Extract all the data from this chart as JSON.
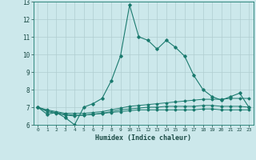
{
  "xlabel": "Humidex (Indice chaleur)",
  "xlim": [
    -0.5,
    23.5
  ],
  "ylim": [
    6,
    13
  ],
  "yticks": [
    6,
    7,
    8,
    9,
    10,
    11,
    12,
    13
  ],
  "xticks": [
    0,
    1,
    2,
    3,
    4,
    5,
    6,
    7,
    8,
    9,
    10,
    11,
    12,
    13,
    14,
    15,
    16,
    17,
    18,
    19,
    20,
    21,
    22,
    23
  ],
  "bg_color": "#cce8eb",
  "grid_color": "#b0cdd0",
  "line_color": "#1a7a6e",
  "line1_x": [
    0,
    1,
    2,
    3,
    4,
    5,
    6,
    7,
    8,
    9,
    10,
    11,
    12,
    13,
    14,
    15,
    16,
    17,
    18,
    19,
    20,
    21,
    22,
    23
  ],
  "line1_y": [
    7.0,
    6.6,
    6.7,
    6.4,
    6.0,
    7.0,
    7.2,
    7.5,
    8.5,
    9.9,
    12.8,
    11.0,
    10.8,
    10.3,
    10.8,
    10.4,
    9.9,
    8.8,
    8.0,
    7.6,
    7.4,
    7.6,
    7.8,
    7.0
  ],
  "line2_x": [
    0,
    1,
    2,
    3,
    4,
    5,
    6,
    7,
    8,
    9,
    10,
    11,
    12,
    13,
    14,
    15,
    16,
    17,
    18,
    19,
    20,
    21,
    22,
    23
  ],
  "line2_y": [
    7.0,
    6.85,
    6.75,
    6.65,
    6.65,
    6.65,
    6.7,
    6.75,
    6.85,
    6.95,
    7.05,
    7.1,
    7.15,
    7.2,
    7.25,
    7.3,
    7.35,
    7.4,
    7.45,
    7.45,
    7.45,
    7.5,
    7.5,
    7.5
  ],
  "line3_x": [
    0,
    1,
    2,
    3,
    4,
    5,
    6,
    7,
    8,
    9,
    10,
    11,
    12,
    13,
    14,
    15,
    16,
    17,
    18,
    19,
    20,
    21,
    22,
    23
  ],
  "line3_y": [
    7.0,
    6.8,
    6.7,
    6.6,
    6.55,
    6.55,
    6.6,
    6.65,
    6.75,
    6.85,
    6.9,
    6.95,
    7.0,
    7.0,
    7.05,
    7.05,
    7.05,
    7.05,
    7.1,
    7.1,
    7.05,
    7.05,
    7.05,
    7.0
  ],
  "line4_x": [
    0,
    1,
    2,
    3,
    4,
    5,
    6,
    7,
    8,
    9,
    10,
    11,
    12,
    13,
    14,
    15,
    16,
    17,
    18,
    19,
    20,
    21,
    22,
    23
  ],
  "line4_y": [
    7.0,
    6.75,
    6.65,
    6.55,
    6.5,
    6.55,
    6.6,
    6.65,
    6.7,
    6.75,
    6.8,
    6.85,
    6.85,
    6.85,
    6.85,
    6.85,
    6.85,
    6.85,
    6.9,
    6.9,
    6.85,
    6.85,
    6.85,
    6.85
  ]
}
